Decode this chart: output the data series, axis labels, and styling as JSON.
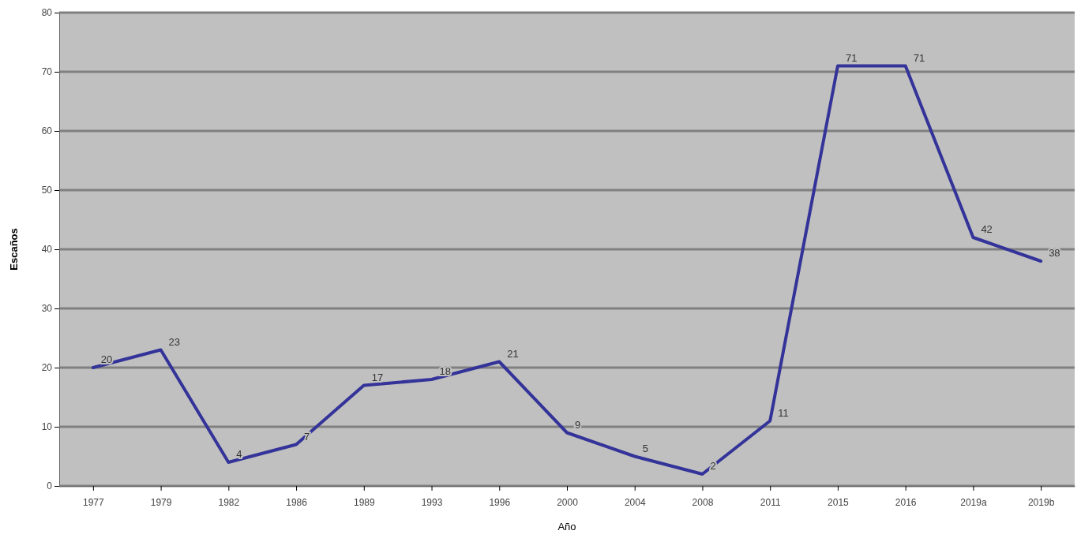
{
  "chart_data": {
    "type": "line",
    "xlabel": "Año",
    "ylabel": "Escaños",
    "categories": [
      "1977",
      "1979",
      "1982",
      "1986",
      "1989",
      "1993",
      "1996",
      "2000",
      "2004",
      "2008",
      "2011",
      "2015",
      "2016",
      "2019a",
      "2019b"
    ],
    "series": [
      {
        "color": "#333399",
        "values": [
          20,
          23,
          4,
          7,
          17,
          18,
          21,
          9,
          5,
          2,
          11,
          71,
          71,
          42,
          38
        ]
      }
    ],
    "ylim": [
      0,
      80
    ],
    "yticks": [
      0,
      10,
      20,
      30,
      40,
      50,
      60,
      70,
      80
    ],
    "grid": "y",
    "data_labels": true,
    "marker": "none",
    "line_style": "solid"
  }
}
